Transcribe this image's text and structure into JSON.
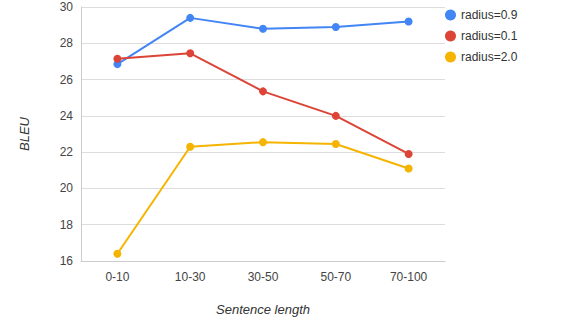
{
  "chart_data": {
    "type": "line",
    "x_label": "Sentence length",
    "y_label": "BLEU",
    "categories": [
      "0-10",
      "10-30",
      "30-50",
      "50-70",
      "70-100"
    ],
    "series": [
      {
        "name": "radius=0.9",
        "color": "#4285f4",
        "values": [
          26.85,
          29.4,
          28.8,
          28.9,
          29.2
        ]
      },
      {
        "name": "radius=0.1",
        "color": "#db4437",
        "values": [
          27.15,
          27.45,
          25.35,
          24.0,
          21.9
        ]
      },
      {
        "name": "radius=2.0",
        "color": "#f4b400",
        "values": [
          16.4,
          22.3,
          22.55,
          22.45,
          21.1
        ]
      }
    ],
    "ylim": [
      16,
      30
    ],
    "yticks": [
      16,
      18,
      20,
      22,
      24,
      26,
      28,
      30
    ],
    "grid": true,
    "legend": "top-right",
    "marker": "circle",
    "line_style": "solid"
  }
}
